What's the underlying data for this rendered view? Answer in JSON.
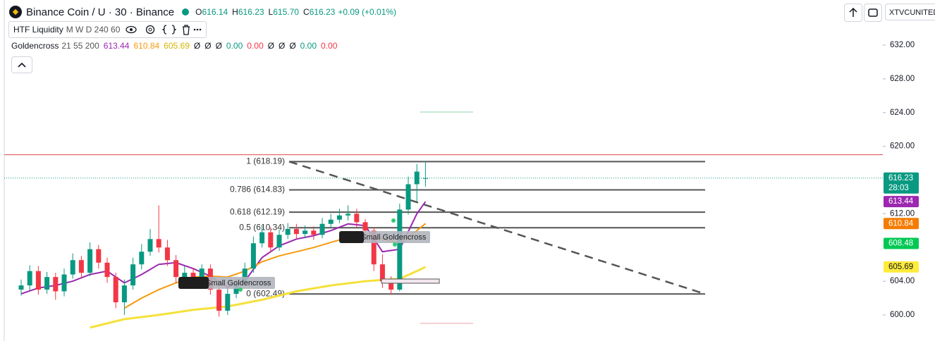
{
  "header": {
    "symbol": "Binance Coin / U · 30 · Binance",
    "ohlc": [
      {
        "key": "O",
        "value": "616.14"
      },
      {
        "key": "H",
        "value": "616.23"
      },
      {
        "key": "L",
        "value": "615.70"
      },
      {
        "key": "C",
        "value": "616.23"
      }
    ],
    "change": "+0.09 (+0.01%)",
    "account": "XTVCUNITED"
  },
  "indicators": [
    {
      "name": "HTF Liquidity",
      "params": "M W D 240 60"
    },
    {
      "name": "Goldencross",
      "params": "21 55 200",
      "values": [
        {
          "text": "613.44",
          "color": "#9c27b0"
        },
        {
          "text": "610.84",
          "color": "#f59a0c"
        },
        {
          "text": "605.69",
          "color": "#d6b400"
        },
        {
          "text": "Ø",
          "color": "#131722"
        },
        {
          "text": "Ø",
          "color": "#131722"
        },
        {
          "text": "Ø",
          "color": "#131722"
        },
        {
          "text": "0.00",
          "color": "#089981"
        },
        {
          "text": "0.00",
          "color": "#f23645"
        },
        {
          "text": "Ø",
          "color": "#131722"
        },
        {
          "text": "Ø",
          "color": "#131722"
        },
        {
          "text": "Ø",
          "color": "#131722"
        },
        {
          "text": "0.00",
          "color": "#089981"
        },
        {
          "text": "0.00",
          "color": "#f23645"
        }
      ]
    }
  ],
  "chart": {
    "ylim": [
      596.91,
      637.35
    ],
    "yticks": [
      {
        "value": 632,
        "label": "632.00"
      },
      {
        "value": 628,
        "label": "628.00"
      },
      {
        "value": 624,
        "label": "624.00"
      },
      {
        "value": 620,
        "label": "620.00"
      },
      {
        "value": 612,
        "label": "612.00"
      },
      {
        "value": 604,
        "label": "604.00"
      },
      {
        "value": 600,
        "label": "600.00"
      }
    ],
    "up_color": "#089981",
    "down_color": "#f23645",
    "open": [
      603.0,
      603.5,
      605.2,
      603.0,
      604.5,
      602.8,
      604.8,
      606.5,
      605.0,
      607.8,
      606.2,
      604.5,
      601.5,
      603.5,
      606.0,
      607.5,
      609.0,
      608.0,
      606.5,
      604.5,
      605.0,
      604.2,
      605.5,
      603.0,
      600.5,
      602.5,
      603.8,
      605.5,
      608.5,
      609.8,
      608.0,
      609.5,
      610.2,
      609.6,
      610.0,
      609.5,
      610.8,
      611.3,
      611.8,
      612.0,
      611.0,
      610.0,
      606.0,
      604.0,
      603.0,
      612.5,
      615.5,
      616.14
    ],
    "high": [
      604.2,
      605.9,
      605.8,
      605.1,
      605.0,
      605.5,
      607.3,
      607.0,
      608.6,
      608.3,
      606.8,
      605.0,
      604.2,
      606.8,
      608.4,
      610.2,
      613.0,
      608.9,
      607.1,
      605.8,
      605.6,
      606.0,
      606.0,
      603.6,
      603.2,
      604.4,
      606.2,
      609.3,
      610.6,
      610.4,
      610.1,
      610.9,
      610.8,
      610.6,
      610.5,
      611.5,
      612.0,
      612.6,
      613.0,
      612.6,
      611.4,
      610.4,
      607.2,
      604.6,
      613.2,
      616.4,
      617.9,
      618.2
    ],
    "low": [
      602.3,
      602.9,
      602.4,
      602.5,
      601.8,
      602.2,
      604.3,
      604.4,
      604.6,
      605.5,
      603.8,
      600.8,
      600.0,
      603.0,
      605.4,
      607.0,
      607.4,
      605.8,
      603.8,
      603.9,
      603.6,
      603.7,
      602.4,
      599.8,
      600.0,
      602.0,
      603.3,
      605.0,
      608.0,
      607.4,
      607.6,
      609.0,
      609.0,
      609.1,
      608.9,
      609.1,
      610.3,
      610.9,
      611.2,
      610.4,
      609.0,
      605.2,
      603.2,
      602.4,
      602.8,
      611.9,
      613.5,
      615.2
    ],
    "close": [
      603.5,
      605.2,
      603.0,
      604.5,
      602.8,
      604.8,
      606.5,
      605.0,
      607.8,
      606.2,
      604.5,
      601.5,
      603.5,
      606.0,
      607.5,
      609.0,
      608.0,
      606.5,
      604.5,
      605.0,
      604.2,
      605.5,
      603.0,
      600.5,
      602.5,
      603.8,
      605.5,
      608.5,
      609.8,
      608.0,
      609.5,
      610.2,
      609.6,
      610.0,
      609.5,
      610.8,
      611.3,
      611.8,
      612.0,
      611.0,
      610.0,
      606.0,
      604.0,
      603.0,
      612.5,
      615.5,
      617.0,
      616.23
    ],
    "averages": [
      {
        "color": "#9c27b0",
        "x": [
          0,
          2,
          4,
          6,
          8,
          10,
          12,
          14,
          16,
          18,
          20,
          22,
          24,
          26,
          28,
          30,
          32,
          34,
          36,
          38,
          40,
          42,
          44,
          46,
          47
        ],
        "values": [
          602.5,
          603.2,
          603.5,
          604.0,
          604.8,
          605.2,
          603.8,
          604.8,
          606.0,
          606.2,
          605.5,
          604.6,
          603.3,
          604.0,
          606.8,
          608.2,
          609.0,
          609.4,
          610.0,
          610.8,
          610.6,
          607.5,
          607.8,
          612.0,
          613.44
        ]
      },
      {
        "color": "#f59a0c",
        "x": [
          12,
          14,
          16,
          18,
          20,
          22,
          24,
          26,
          28,
          30,
          32,
          34,
          36,
          38,
          40,
          42,
          44,
          46,
          47
        ],
        "values": [
          600.8,
          602.0,
          603.0,
          603.8,
          604.5,
          604.6,
          604.5,
          605.2,
          606.3,
          607.0,
          607.5,
          608.0,
          608.6,
          609.2,
          609.6,
          609.0,
          608.5,
          610.0,
          610.84
        ]
      },
      {
        "color": "#f5e13b",
        "x": [
          8,
          12,
          16,
          20,
          24,
          28,
          32,
          36,
          40,
          44,
          46,
          47
        ],
        "values": [
          598.5,
          599.5,
          600.0,
          600.6,
          601.0,
          601.8,
          602.8,
          603.5,
          604.0,
          604.3,
          605.2,
          605.69
        ]
      }
    ],
    "fib_levels": [
      {
        "label": "1 (618.19)",
        "price": 618.19
      },
      {
        "label": "0.786 (614.83)",
        "price": 614.83
      },
      {
        "label": "0.618 (612.19)",
        "price": 612.19
      },
      {
        "label": "0.5 (610.34)",
        "price": 610.34
      },
      {
        "label": "0 (602.49)",
        "price": 602.49
      }
    ],
    "hlines": [
      {
        "value": 619.0,
        "color": "#e04848"
      },
      {
        "value": 624.06,
        "color": "#8fd3a8"
      },
      {
        "value": 599.0,
        "color": "#f0a0a8"
      }
    ],
    "signals": [
      {
        "text": "Small Goldencross"
      },
      {
        "text": "Small Goldencross"
      }
    ],
    "price_tags": [
      {
        "value": 616.23,
        "countdown": "28:03",
        "color": "#089981"
      },
      {
        "value": 613.44,
        "color": "#9c27b0"
      },
      {
        "value": 610.84,
        "color": "#f57c00"
      },
      {
        "value": 608.48,
        "color": "#00c853"
      },
      {
        "value": 605.69,
        "color": "#ffeb3b",
        "text_color": "#131722"
      }
    ]
  }
}
